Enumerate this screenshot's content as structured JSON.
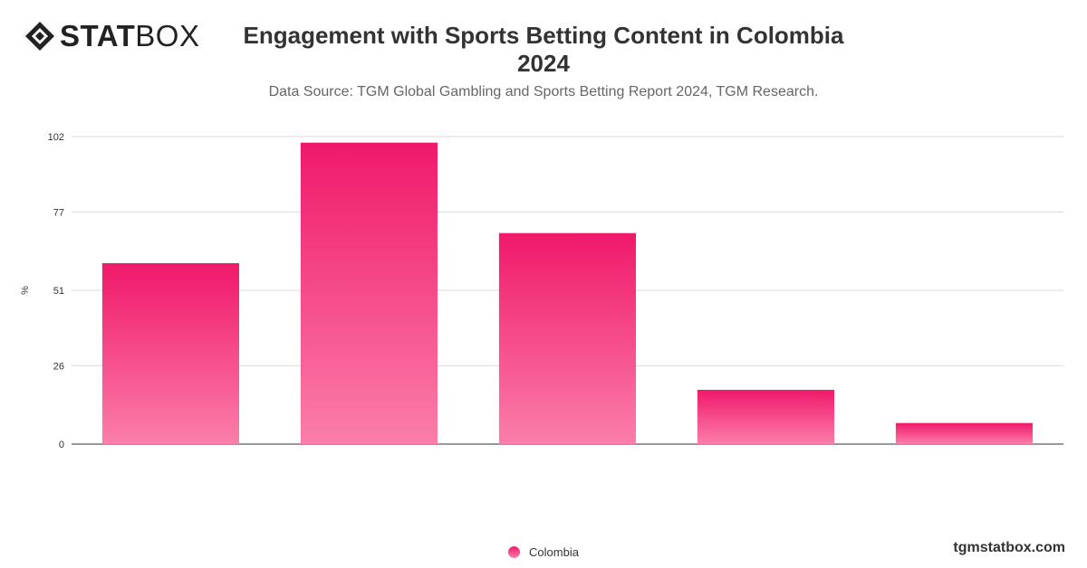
{
  "header": {
    "logo_bold": "STAT",
    "logo_light": "BOX",
    "title_line1": "Engagement with Sports Betting Content in Colombia",
    "title_line2": "2024",
    "subtitle": "Data Source: TGM Global Gambling and Sports Betting Report 2024, TGM Research."
  },
  "footer": {
    "brand": "tgmstatbox.com"
  },
  "colors": {
    "bar_top": "#f0196a",
    "bar_bottom": "#fb7eaa",
    "grid": "#d9d9d9",
    "axis": "#333333"
  },
  "chart_data": {
    "type": "bar",
    "categories": [
      "",
      "",
      "",
      "",
      ""
    ],
    "series": [
      {
        "name": "Colombia",
        "values": [
          60,
          100,
          70,
          18,
          7
        ]
      }
    ],
    "ylabel": "%",
    "yticks": [
      0,
      26,
      51,
      77,
      102
    ],
    "ylim": [
      0,
      102
    ],
    "grid": true,
    "legend_position": "bottom-center"
  }
}
